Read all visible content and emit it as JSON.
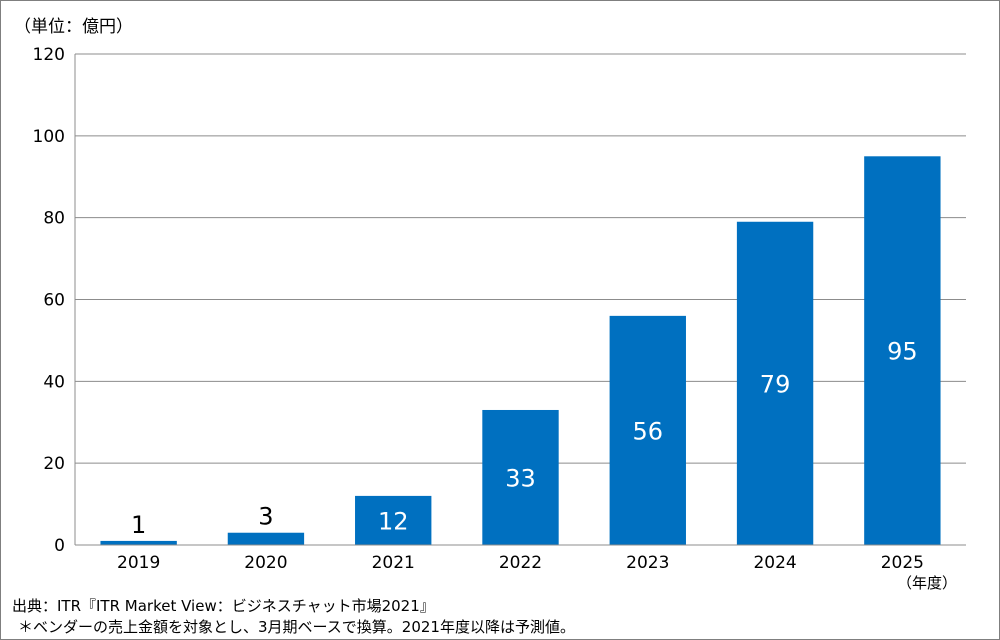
{
  "chart_data": {
    "type": "bar",
    "unit_label": "（単位：億円）",
    "categories": [
      "2019",
      "2020",
      "2021",
      "2022",
      "2023",
      "2024",
      "2025"
    ],
    "values": [
      1,
      3,
      12,
      33,
      56,
      79,
      95
    ],
    "value_labels": [
      "1",
      "3",
      "12",
      "33",
      "56",
      "79",
      "95"
    ],
    "x_unit_label": "（年度）",
    "ylim": [
      0,
      120
    ],
    "yticks": [
      0,
      20,
      40,
      60,
      80,
      100,
      120
    ],
    "grid": true,
    "bar_color": "#0070c0",
    "label_color_inside": "#ffffff",
    "label_color_outside": "#000000"
  },
  "footer": {
    "source": "出典：ITR『ITR Market View：ビジネスチャット市場2021』",
    "note": "＊ベンダーの売上金額を対象とし、3月期ベースで換算。2021年度以降は予測値。"
  }
}
